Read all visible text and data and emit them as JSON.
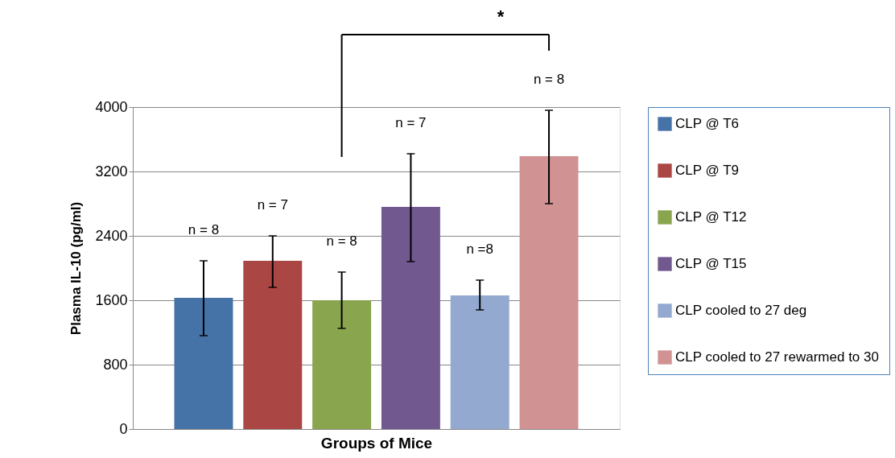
{
  "chart_data": {
    "type": "bar",
    "xlabel": "Groups of Mice",
    "ylabel": "Plasma IL-10 (pg/ml)",
    "categories": [
      null
    ],
    "series": [
      {
        "name": "CLP @ T6",
        "color": "#4572a7",
        "values": [
          1630
        ],
        "errors": [
          [
            1160,
            2090
          ]
        ]
      },
      {
        "name": "CLP @ T9",
        "color": "#aa4643",
        "values": [
          2090
        ],
        "errors": [
          [
            1760,
            2400
          ]
        ]
      },
      {
        "name": "CLP @ T12",
        "color": "#89a54e",
        "values": [
          1600
        ],
        "errors": [
          [
            1250,
            1950
          ]
        ]
      },
      {
        "name": "CLP @ T15",
        "color": "#71588f",
        "values": [
          2760
        ],
        "errors": [
          [
            2080,
            3420
          ]
        ]
      },
      {
        "name": "CLP cooled to 27 deg",
        "color": "#93a9cf",
        "values": [
          1660
        ],
        "errors": [
          [
            1480,
            1850
          ]
        ]
      },
      {
        "name": "CLP cooled to 27 rewarmed to 30",
        "color": "#d09293",
        "values": [
          3390
        ],
        "errors": [
          [
            2800,
            3960
          ]
        ]
      }
    ],
    "ylim": [
      0,
      4000
    ],
    "yticks": [
      0,
      800,
      1600,
      2400,
      3200,
      4000
    ],
    "grid": "y",
    "legend": "right",
    "tick_labels": "y",
    "annotations": [
      "n = 8",
      "n = 7",
      "n = 8",
      "n = 7",
      "n =8",
      "n = 8",
      "*"
    ]
  }
}
